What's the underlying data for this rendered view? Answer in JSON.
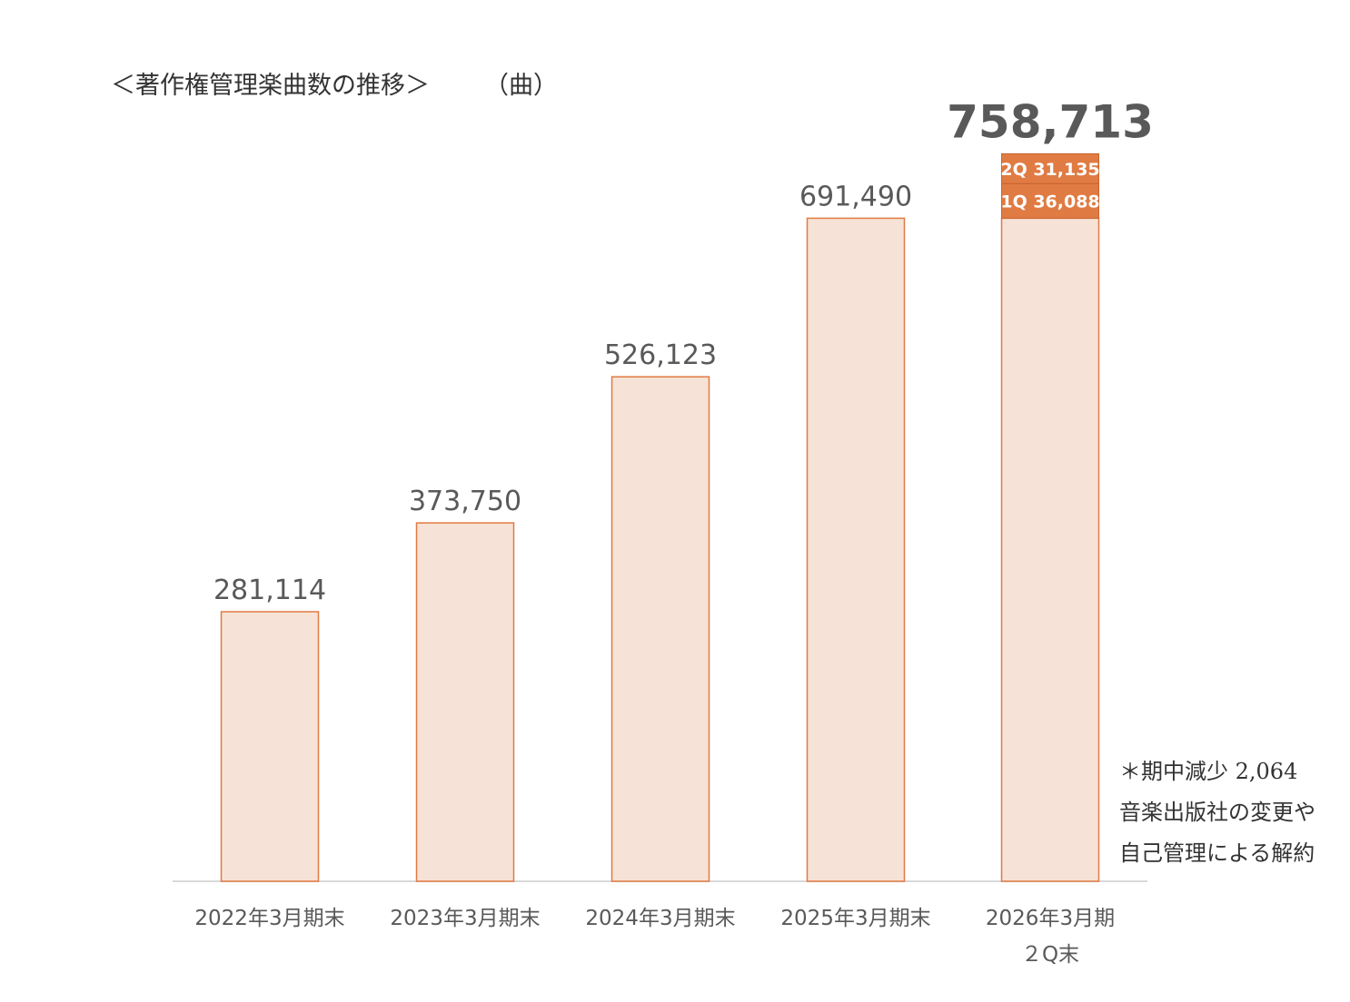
{
  "title": "＜著作権管理楽曲数の推移＞",
  "unit": "（曲）",
  "colors": {
    "bar_fill": "#F6E2D6",
    "bar_stroke": "#E07B43",
    "segment_fill": "#E07B43",
    "axis": "#d9d9d9",
    "text": "#595959",
    "total_text": "#595959"
  },
  "note": {
    "line1": "＊期中減少 2,064",
    "line2": "音楽出版社の変更や",
    "line3": "自己管理による解約"
  },
  "chart_data": {
    "type": "bar",
    "categories": [
      "2022年3月期末",
      "2023年3月期末",
      "2024年3月期末",
      "2025年3月期末",
      "2026年3月期\n２Q末"
    ],
    "values": [
      281114,
      373750,
      526123,
      691490,
      758713
    ],
    "value_labels": [
      "281,114",
      "373,750",
      "526,123",
      "691,490",
      "758,713"
    ],
    "stacked_segments_last_bar": [
      {
        "label": "1Q 36,088",
        "value": 36088
      },
      {
        "label": "2Q 31,135",
        "value": 31135
      }
    ],
    "base_last_bar": 691490,
    "title": "＜著作権管理楽曲数の推移＞",
    "ylabel": "（曲）",
    "ylim": [
      0,
      750000
    ],
    "grid": false,
    "legend": "none"
  }
}
